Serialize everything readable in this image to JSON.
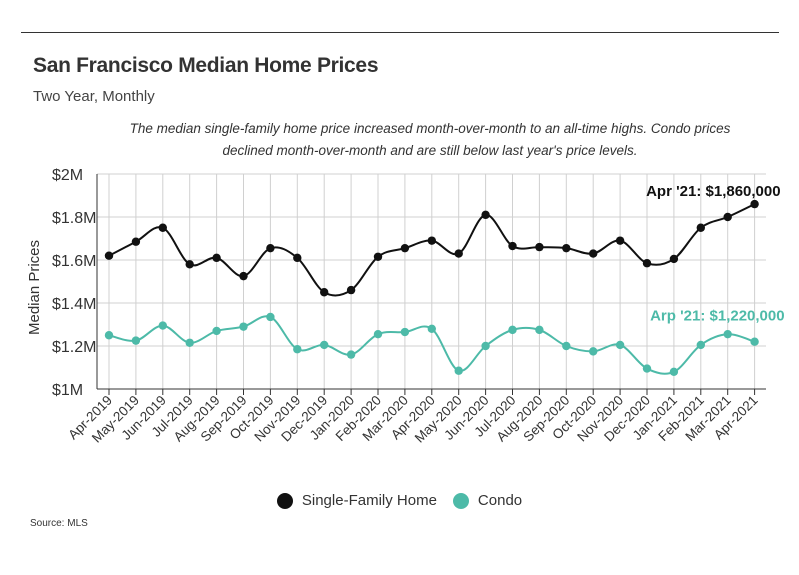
{
  "header": {
    "title": "San Francisco Median Home Prices",
    "subtitle": "Two Year, Monthly",
    "note": "The median single-family home price increased month-over-month to an all-time highs. Condo prices declined month-over-month and are still below last year's price levels."
  },
  "footer": {
    "source": "Source:  MLS"
  },
  "colors": {
    "sfh": "#111111",
    "condo": "#4dbaa8",
    "grid": "#d0d0d0",
    "axis": "#333333"
  },
  "chart_data": {
    "type": "line",
    "title": "San Francisco Median Home Prices",
    "subtitle": "Two Year, Monthly",
    "ylabel": "Median Prices",
    "xlabel": "",
    "ylim": [
      1000000,
      2000000
    ],
    "yticks": [
      1000000,
      1200000,
      1400000,
      1600000,
      1800000,
      2000000
    ],
    "ytick_labels": [
      "$1M",
      "$1.2M",
      "$1.4M",
      "$1.6M",
      "$1.8M",
      "$2M"
    ],
    "grid": true,
    "legend_position": "bottom",
    "categories": [
      "Apr-2019",
      "May-2019",
      "Jun-2019",
      "Jul-2019",
      "Aug-2019",
      "Sep-2019",
      "Oct-2019",
      "Nov-2019",
      "Dec-2019",
      "Jan-2020",
      "Feb-2020",
      "Mar-2020",
      "Apr-2020",
      "May-2020",
      "Jun-2020",
      "Jul-2020",
      "Aug-2020",
      "Sep-2020",
      "Oct-2020",
      "Nov-2020",
      "Dec-2020",
      "Jan-2021",
      "Feb-2021",
      "Mar-2021",
      "Apr-2021"
    ],
    "series": [
      {
        "name": "Single-Family Home",
        "color": "#111111",
        "values": [
          1620000,
          1685000,
          1750000,
          1580000,
          1610000,
          1525000,
          1655000,
          1610000,
          1450000,
          1460000,
          1615000,
          1655000,
          1690000,
          1630000,
          1810000,
          1665000,
          1660000,
          1655000,
          1630000,
          1690000,
          1585000,
          1605000,
          1750000,
          1800000,
          1860000
        ]
      },
      {
        "name": "Condo",
        "color": "#4dbaa8",
        "values": [
          1250000,
          1225000,
          1295000,
          1215000,
          1270000,
          1290000,
          1335000,
          1185000,
          1205000,
          1160000,
          1255000,
          1265000,
          1280000,
          1085000,
          1200000,
          1275000,
          1275000,
          1200000,
          1175000,
          1205000,
          1095000,
          1080000,
          1205000,
          1255000,
          1220000
        ]
      }
    ],
    "annotations": [
      {
        "series": 0,
        "index": 24,
        "text": "Apr '21: $1,860,000"
      },
      {
        "series": 1,
        "index": 24,
        "text": "Arp '21: $1,220,000"
      }
    ]
  }
}
